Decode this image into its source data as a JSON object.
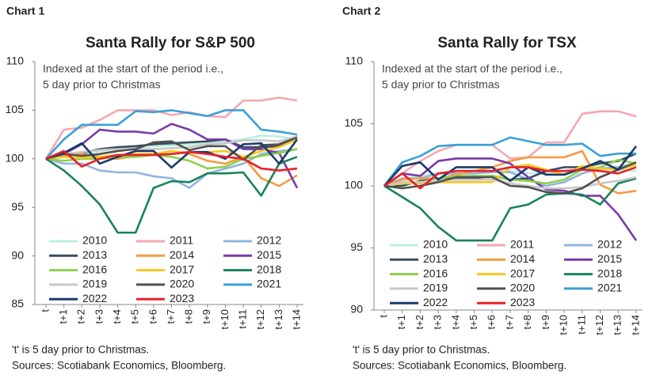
{
  "chart_data": [
    {
      "type": "line",
      "label": "Chart 1",
      "title": "Santa Rally for S&P 500",
      "annotation": [
        "Indexed at the start of the period i.e.,",
        "5 day prior to Christmas"
      ],
      "categories": [
        "t",
        "t+1",
        "t+2",
        "t+3",
        "t+4",
        "t+5",
        "t+6",
        "t+7",
        "t+8",
        "t+9",
        "t+10",
        "t+11",
        "t+12",
        "t+13",
        "t+14"
      ],
      "ylim": [
        85,
        110
      ],
      "yticks": [
        85,
        90,
        95,
        100,
        105,
        110
      ],
      "series": [
        {
          "name": "2010",
          "color": "#b8f0e0",
          "values": [
            100,
            100.2,
            100.5,
            100.8,
            101,
            101.2,
            101.3,
            101.4,
            101.5,
            101.6,
            101.8,
            102,
            102.4,
            102.3,
            102
          ]
        },
        {
          "name": "2011",
          "color": "#f4a8b0",
          "values": [
            100,
            103,
            103.2,
            104,
            105,
            105,
            105,
            104.5,
            104.8,
            104.4,
            104.3,
            106,
            106,
            106.3,
            106
          ]
        },
        {
          "name": "2012",
          "color": "#92b4e0",
          "values": [
            100,
            99.5,
            99.5,
            98.8,
            98.6,
            98.6,
            98.2,
            98,
            97,
            98.5,
            99,
            99.5,
            100.5,
            100.8,
            101
          ]
        },
        {
          "name": "2013",
          "color": "#3c4c60",
          "values": [
            100,
            100.3,
            100.6,
            101,
            101.2,
            101.3,
            101.5,
            101.6,
            101.7,
            101.8,
            102,
            101.2,
            101.2,
            101.3,
            102
          ]
        },
        {
          "name": "2014",
          "color": "#f49c40",
          "values": [
            100,
            100.3,
            100.5,
            100.2,
            100,
            100.3,
            100.5,
            100.8,
            100.5,
            99.8,
            99.5,
            100.2,
            98,
            97.2,
            98.3
          ]
        },
        {
          "name": "2015",
          "color": "#7a3aa8",
          "values": [
            100,
            100.5,
            101.5,
            103,
            102.8,
            102.8,
            102.6,
            103.6,
            103,
            102,
            102,
            101,
            101,
            100.6,
            97
          ]
        },
        {
          "name": "2016",
          "color": "#8ed04a",
          "values": [
            100,
            99.8,
            100,
            100,
            100.2,
            100.2,
            100.4,
            100.2,
            99.8,
            99,
            99.2,
            100,
            100.3,
            100.6,
            101
          ]
        },
        {
          "name": "2017",
          "color": "#f8c820",
          "values": [
            100,
            100.2,
            100.1,
            100.2,
            100.4,
            100.5,
            100.5,
            100.8,
            100.6,
            100.7,
            100.8,
            100.2,
            100.8,
            101.2,
            102
          ]
        },
        {
          "name": "2018",
          "color": "#18845a",
          "values": [
            100,
            98.8,
            97.2,
            95.3,
            92.4,
            92.4,
            97,
            97.7,
            97.6,
            98.5,
            98.5,
            98.6,
            96.2,
            99.5,
            100.2
          ]
        },
        {
          "name": "2019",
          "color": "#c8c8c8",
          "values": [
            100,
            100.5,
            100.7,
            100.9,
            101,
            101,
            101,
            101.1,
            101.2,
            101.5,
            101.6,
            101.9,
            101.9,
            101.8,
            102.3
          ]
        },
        {
          "name": "2020",
          "color": "#505050",
          "values": [
            100,
            100.5,
            100.3,
            100.5,
            100.8,
            101,
            101.7,
            101.8,
            100.9,
            101.3,
            101.3,
            99.9,
            101.4,
            101.5,
            102.2
          ]
        },
        {
          "name": "2021",
          "color": "#3aa0d8",
          "values": [
            100,
            102,
            103.5,
            103.5,
            103.5,
            104.9,
            104.8,
            105,
            104.7,
            104.4,
            105,
            105,
            103,
            102.8,
            102.5
          ]
        },
        {
          "name": "2022",
          "color": "#1a3a6a",
          "values": [
            100,
            100.6,
            101.6,
            99.5,
            100.2,
            100.8,
            100.8,
            99.1,
            100.7,
            100.7,
            100,
            101.5,
            101.6,
            99.5,
            102
          ]
        },
        {
          "name": "2023",
          "color": "#e8202a",
          "values": [
            100,
            100.8,
            99.2,
            100,
            100.4,
            100.4,
            100.4,
            100.5,
            100.7,
            100.5,
            100.2,
            100,
            99,
            98.8,
            99
          ]
        }
      ],
      "notes": [
        "'t' is 5 day prior to Christmas.",
        "Sources: Scotiabank Economics, Bloomberg."
      ]
    },
    {
      "type": "line",
      "label": "Chart 2",
      "title": "Santa Rally for TSX",
      "annotation": [
        "Indexed at the start of the period i.e.,",
        "5 day prior to Christmas"
      ],
      "categories": [
        "t",
        "t+1",
        "t+2",
        "t+3",
        "t+4",
        "t+5",
        "t+6",
        "t+7",
        "t+8",
        "t+9",
        "t+10",
        "t+11",
        "t+12",
        "t+13",
        "t+14"
      ],
      "ylim": [
        90,
        110
      ],
      "yticks": [
        90,
        95,
        100,
        105,
        110
      ],
      "series": [
        {
          "name": "2010",
          "color": "#b8f0e0",
          "values": [
            100,
            100.5,
            100.8,
            101,
            101,
            101,
            101.2,
            101.2,
            101,
            101,
            101,
            101.3,
            101.5,
            101.3,
            101.2
          ]
        },
        {
          "name": "2011",
          "color": "#f4a8b0",
          "values": [
            100,
            101,
            102,
            102.8,
            103.3,
            103.3,
            103.3,
            102.2,
            102.3,
            103.5,
            103.5,
            105.8,
            106,
            106,
            105.6
          ]
        },
        {
          "name": "2012",
          "color": "#92b4e0",
          "values": [
            100,
            100.6,
            100.6,
            101,
            101,
            101,
            101.1,
            101.1,
            100.5,
            100,
            100.3,
            101,
            101.4,
            101.5,
            101.8
          ]
        },
        {
          "name": "2013",
          "color": "#3c4c60",
          "values": [
            100,
            100,
            100.4,
            100.5,
            100.6,
            100.6,
            100.8,
            100.5,
            100.6,
            101.2,
            101.5,
            101.5,
            101.8,
            102,
            102.6
          ]
        },
        {
          "name": "2014",
          "color": "#f49c40",
          "values": [
            100,
            100.5,
            100.6,
            100.6,
            100.9,
            101.2,
            101.5,
            102,
            102.3,
            102.3,
            102.3,
            102.8,
            100.1,
            99.4,
            99.6
          ]
        },
        {
          "name": "2015",
          "color": "#7a3aa8",
          "values": [
            100,
            101,
            100.8,
            102,
            102.2,
            102.2,
            102.2,
            101.8,
            100.7,
            99.7,
            99.6,
            99.2,
            99.2,
            97.7,
            95.6
          ]
        },
        {
          "name": "2016",
          "color": "#8ed04a",
          "values": [
            100,
            100.2,
            100.2,
            100.6,
            100.8,
            100.8,
            100.8,
            100.5,
            100.4,
            100.2,
            100.5,
            101.3,
            101.5,
            102.1,
            101.8
          ]
        },
        {
          "name": "2017",
          "color": "#f8c820",
          "values": [
            100,
            100.2,
            100.2,
            100.3,
            100.3,
            100.3,
            100.3,
            101.5,
            101.7,
            101.3,
            100.9,
            101.6,
            101.4,
            101.3,
            101.7
          ]
        },
        {
          "name": "2018",
          "color": "#18845a",
          "values": [
            100,
            99.1,
            98.2,
            96.7,
            95.6,
            95.6,
            95.6,
            98.2,
            98.5,
            99.3,
            99.4,
            99.3,
            98.5,
            100.2,
            100.6
          ]
        },
        {
          "name": "2019",
          "color": "#c8c8c8",
          "values": [
            100,
            100.3,
            100.3,
            100.5,
            100.5,
            100.5,
            100.5,
            100.2,
            100,
            99.8,
            99.8,
            99.9,
            100.2,
            100.4,
            100.7
          ]
        },
        {
          "name": "2020",
          "color": "#505050",
          "values": [
            100,
            99.8,
            100,
            100.3,
            100.7,
            100.7,
            100.7,
            100,
            99.9,
            99.5,
            99.4,
            99.8,
            100.7,
            101.3,
            101.9
          ]
        },
        {
          "name": "2021",
          "color": "#3aa0d8",
          "values": [
            100,
            101.9,
            102.4,
            103.2,
            103.3,
            103.3,
            103.3,
            103.9,
            103.6,
            103.3,
            103.3,
            103.4,
            102.4,
            102.6,
            102.6
          ]
        },
        {
          "name": "2022",
          "color": "#1a3a6a",
          "values": [
            100,
            101.6,
            101.9,
            100.5,
            101.5,
            101.5,
            101.5,
            100.4,
            101.5,
            100.9,
            100.9,
            101.4,
            102,
            101.3,
            103.2
          ]
        },
        {
          "name": "2023",
          "color": "#e8202a",
          "values": [
            100,
            101,
            99.8,
            101,
            101.2,
            101.2,
            101.2,
            101.5,
            101.5,
            101.2,
            101.2,
            101.3,
            101.2,
            101,
            101.5
          ]
        }
      ],
      "notes": [
        "'t' is 5 day prior to Christmas.",
        "Sources: Scotiabank Economics, Bloomberg."
      ]
    }
  ]
}
